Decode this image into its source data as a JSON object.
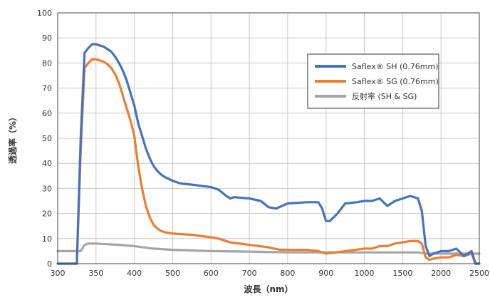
{
  "chart_data": {
    "type": "line",
    "xlabel": "波長（nm）",
    "ylabel": "透過率（%）",
    "x_tick_labels": [
      "300",
      "350",
      "400",
      "500",
      "600",
      "700",
      "800",
      "900",
      "1000",
      "1500",
      "2000",
      "2500"
    ],
    "y_tick_labels": [
      "0",
      "10",
      "20",
      "30",
      "40",
      "50",
      "60",
      "70",
      "80",
      "90",
      "100"
    ],
    "x_ticks": [
      300,
      350,
      400,
      500,
      600,
      700,
      800,
      900,
      1000,
      1500,
      2000,
      2500
    ],
    "ylim": [
      0,
      100
    ],
    "grid": true,
    "legend_position": "top-right",
    "series": [
      {
        "name": "Saflex® SH (0.76mm)",
        "color": "#4472c4",
        "points": [
          [
            300,
            0
          ],
          [
            320,
            0
          ],
          [
            325,
            0
          ],
          [
            330,
            50
          ],
          [
            335,
            84
          ],
          [
            340,
            86
          ],
          [
            345,
            87.5
          ],
          [
            350,
            87.5
          ],
          [
            355,
            87
          ],
          [
            360,
            86.5
          ],
          [
            365,
            85.5
          ],
          [
            370,
            84.5
          ],
          [
            375,
            82.5
          ],
          [
            380,
            80
          ],
          [
            385,
            77
          ],
          [
            390,
            73
          ],
          [
            395,
            68
          ],
          [
            400,
            63
          ],
          [
            410,
            56
          ],
          [
            420,
            51
          ],
          [
            430,
            46
          ],
          [
            440,
            42
          ],
          [
            450,
            39
          ],
          [
            460,
            37
          ],
          [
            470,
            35.5
          ],
          [
            480,
            34.5
          ],
          [
            500,
            33
          ],
          [
            520,
            32
          ],
          [
            550,
            31.5
          ],
          [
            600,
            30.5
          ],
          [
            620,
            29.5
          ],
          [
            640,
            27
          ],
          [
            650,
            26
          ],
          [
            660,
            26.5
          ],
          [
            700,
            26
          ],
          [
            730,
            25
          ],
          [
            750,
            22.5
          ],
          [
            770,
            22
          ],
          [
            800,
            24
          ],
          [
            850,
            24.5
          ],
          [
            880,
            24.5
          ],
          [
            890,
            22
          ],
          [
            900,
            17
          ],
          [
            910,
            17
          ],
          [
            930,
            20
          ],
          [
            950,
            24
          ],
          [
            980,
            24.5
          ],
          [
            1000,
            25
          ],
          [
            1100,
            25
          ],
          [
            1200,
            26
          ],
          [
            1300,
            23
          ],
          [
            1400,
            25
          ],
          [
            1500,
            26
          ],
          [
            1600,
            27
          ],
          [
            1700,
            26
          ],
          [
            1750,
            21
          ],
          [
            1800,
            7
          ],
          [
            1850,
            3
          ],
          [
            1900,
            4
          ],
          [
            1950,
            4.5
          ],
          [
            2000,
            5
          ],
          [
            2100,
            5
          ],
          [
            2200,
            6
          ],
          [
            2300,
            3
          ],
          [
            2400,
            5
          ],
          [
            2450,
            0
          ],
          [
            2500,
            0
          ]
        ]
      },
      {
        "name": "Saflex® SG (0.76mm)",
        "color": "#ed7d31",
        "points": [
          [
            300,
            0
          ],
          [
            320,
            0
          ],
          [
            325,
            0
          ],
          [
            330,
            45
          ],
          [
            335,
            78
          ],
          [
            340,
            80
          ],
          [
            345,
            81.5
          ],
          [
            350,
            81.5
          ],
          [
            355,
            81
          ],
          [
            360,
            80.5
          ],
          [
            365,
            79.5
          ],
          [
            370,
            78
          ],
          [
            375,
            75.5
          ],
          [
            380,
            72
          ],
          [
            385,
            67
          ],
          [
            390,
            62
          ],
          [
            395,
            57
          ],
          [
            400,
            51
          ],
          [
            410,
            39
          ],
          [
            420,
            30
          ],
          [
            430,
            23
          ],
          [
            440,
            18.5
          ],
          [
            450,
            15.5
          ],
          [
            460,
            14
          ],
          [
            470,
            13
          ],
          [
            480,
            12.5
          ],
          [
            500,
            12
          ],
          [
            550,
            11.5
          ],
          [
            600,
            10.5
          ],
          [
            620,
            10
          ],
          [
            640,
            9
          ],
          [
            650,
            8.5
          ],
          [
            700,
            7.5
          ],
          [
            750,
            6.5
          ],
          [
            780,
            5.5
          ],
          [
            800,
            5.5
          ],
          [
            850,
            5.5
          ],
          [
            880,
            5
          ],
          [
            900,
            4
          ],
          [
            950,
            5
          ],
          [
            1000,
            6
          ],
          [
            1100,
            6
          ],
          [
            1200,
            7
          ],
          [
            1300,
            7
          ],
          [
            1400,
            8
          ],
          [
            1500,
            8.5
          ],
          [
            1600,
            9
          ],
          [
            1700,
            9
          ],
          [
            1750,
            8
          ],
          [
            1800,
            2.5
          ],
          [
            1850,
            1.5
          ],
          [
            1900,
            2
          ],
          [
            2000,
            2.5
          ],
          [
            2100,
            2.5
          ],
          [
            2200,
            3.5
          ],
          [
            2300,
            3
          ],
          [
            2400,
            4
          ],
          [
            2450,
            0
          ],
          [
            2500,
            0
          ]
        ]
      },
      {
        "name": "反射率 (SH & SG)",
        "color": "#a5a5a5",
        "points": [
          [
            300,
            5
          ],
          [
            320,
            5
          ],
          [
            330,
            5
          ],
          [
            335,
            7.5
          ],
          [
            340,
            8
          ],
          [
            350,
            8
          ],
          [
            380,
            7.5
          ],
          [
            400,
            7
          ],
          [
            450,
            6
          ],
          [
            500,
            5.5
          ],
          [
            600,
            5
          ],
          [
            700,
            4.8
          ],
          [
            800,
            4.5
          ],
          [
            900,
            4.5
          ],
          [
            1000,
            4.5
          ],
          [
            1200,
            4.5
          ],
          [
            1500,
            4.5
          ],
          [
            1700,
            4.5
          ],
          [
            1800,
            4
          ],
          [
            2000,
            4
          ],
          [
            2200,
            4
          ],
          [
            2400,
            4
          ],
          [
            2500,
            4
          ]
        ]
      }
    ]
  }
}
